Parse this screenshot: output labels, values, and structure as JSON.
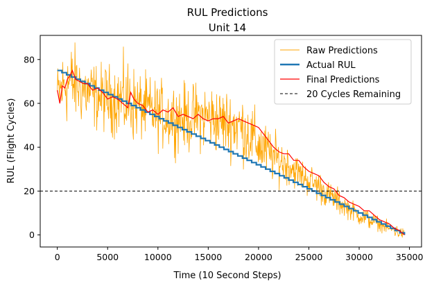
{
  "chart_data": {
    "type": "line",
    "title": "RUL Predictions",
    "subtitle": "Unit 14",
    "xlabel": "Time (10 Second Steps)",
    "ylabel": "RUL (Flight Cycles)",
    "xlim": [
      -1700,
      36200
    ],
    "ylim": [
      -5.5,
      91
    ],
    "xticks": [
      0,
      5000,
      10000,
      15000,
      20000,
      25000,
      30000,
      35000
    ],
    "yticks": [
      0,
      20,
      40,
      60,
      80
    ],
    "grid": false,
    "legend_position": "top-right",
    "threshold": {
      "name": "20 Cycles Remaining",
      "y": 20,
      "color": "#000000",
      "style": "dashed"
    },
    "series": [
      {
        "name": "Raw Predictions",
        "color": "#ffa500",
        "style": "noisy",
        "x": [
          0,
          1000,
          2000,
          3000,
          4000,
          5000,
          6000,
          7000,
          8000,
          9000,
          10000,
          11000,
          12000,
          13000,
          14000,
          15000,
          16000,
          17000,
          18000,
          19000,
          20000,
          21000,
          22000,
          23000,
          24000,
          25000,
          26000,
          27000,
          28000,
          29000,
          30000,
          31000,
          32000,
          33000,
          34000,
          34500
        ],
        "center": [
          64,
          70,
          68,
          65,
          63,
          62,
          62,
          61,
          59,
          57,
          55,
          54,
          54,
          53,
          54,
          54,
          52,
          51,
          50,
          46,
          41,
          37,
          34,
          32,
          28,
          25,
          22,
          18,
          15,
          12,
          9,
          7,
          5,
          3,
          1,
          0.5
        ],
        "spread": [
          9,
          13,
          11,
          10,
          10,
          10,
          11,
          13,
          10,
          10,
          10,
          10,
          10,
          10,
          10,
          10,
          10,
          10,
          10,
          10,
          9,
          8,
          7,
          6,
          5,
          5,
          5,
          4,
          4,
          3,
          3,
          3,
          2,
          2,
          2,
          1.5
        ]
      },
      {
        "name": "Actual RUL",
        "color": "#1f77b4",
        "style": "step",
        "x_start": 0,
        "x_end": 34500,
        "y_start": 75,
        "y_end": 0,
        "step_size": 1
      },
      {
        "name": "Final Predictions",
        "color": "#ff0000",
        "style": "line",
        "x": [
          0,
          250,
          500,
          750,
          1000,
          1300,
          1500,
          1800,
          2200,
          2600,
          3000,
          3500,
          4000,
          4500,
          5000,
          5500,
          6000,
          6500,
          7000,
          7300,
          7600,
          8000,
          8500,
          9000,
          9500,
          10000,
          10500,
          11000,
          11500,
          12000,
          12500,
          13000,
          13500,
          14000,
          14500,
          15000,
          15500,
          16000,
          16500,
          17000,
          17500,
          18000,
          18500,
          19000,
          19500,
          20000,
          20500,
          21000,
          21500,
          22000,
          22500,
          23000,
          23500,
          24000,
          24500,
          25000,
          25500,
          26000,
          26500,
          27000,
          27500,
          28000,
          28500,
          29000,
          29500,
          30000,
          30500,
          31000,
          31500,
          32000,
          32500,
          33000,
          33500,
          34000,
          34500
        ],
        "y": [
          66,
          60,
          68,
          67,
          71,
          73,
          75,
          71,
          70,
          69,
          69,
          66,
          67,
          65,
          62,
          63,
          62,
          60,
          58,
          65,
          62,
          60,
          59,
          56,
          57,
          55,
          57,
          56,
          58,
          54,
          55,
          54,
          53,
          55,
          53,
          52,
          53,
          53,
          54,
          51,
          52,
          53,
          52,
          51,
          50,
          49,
          46,
          43,
          40,
          38,
          37,
          37,
          34,
          34,
          31,
          29,
          28,
          27,
          24,
          22,
          21,
          18,
          17,
          15,
          14,
          13,
          11,
          11,
          9,
          7,
          6,
          5,
          3,
          2,
          0
        ]
      }
    ]
  }
}
